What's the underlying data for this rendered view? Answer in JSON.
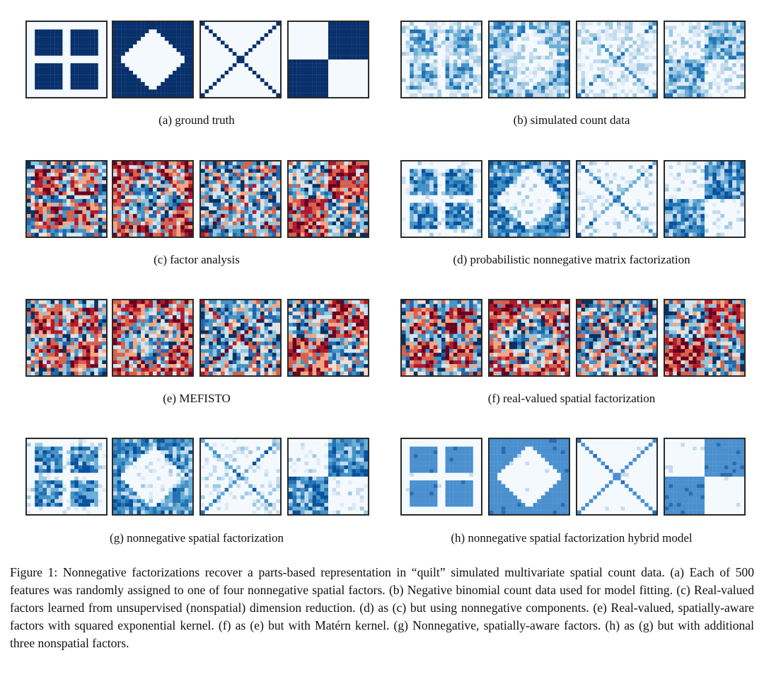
{
  "figure": {
    "groups": [
      {
        "id": "a",
        "caption": "(a) ground truth",
        "style": "truth"
      },
      {
        "id": "b",
        "caption": "(b) simulated count data",
        "style": "sim"
      },
      {
        "id": "c",
        "caption": "(c) factor analysis",
        "style": "diverging"
      },
      {
        "id": "d",
        "caption": "(d) probabilistic nonnegative matrix factorization",
        "style": "pnmf"
      },
      {
        "id": "e",
        "caption": "(e) MEFISTO",
        "style": "diverging"
      },
      {
        "id": "f",
        "caption": "(f) real-valued spatial factorization",
        "style": "diverging"
      },
      {
        "id": "g",
        "caption": "(g) nonnegative spatial factorization",
        "style": "nsf"
      },
      {
        "id": "h",
        "caption": "(h) nonnegative spatial factorization hybrid model",
        "style": "clean"
      }
    ],
    "patterns": [
      "quilt-squares",
      "diamond",
      "x-cross",
      "checkerboard"
    ],
    "caption_text": "Figure 1: Nonnegative factorizations recover a parts-based representation in “quilt” simulated multivariate spatial count data. (a) Each of 500 features was randomly assigned to one of four nonnegative spatial factors. (b) Negative binomial count data used for model fitting. (c) Real-valued factors learned from unsupervised (nonspatial) dimension reduction. (d) as (c) but using nonnegative components. (e) Real-valued, spatially-aware factors with squared exponential kernel. (f) as (e) but with Matérn kernel. (g) Nonnegative, spatially-aware factors. (h) as (g) but with additional three nonspatial factors.",
    "colors": {
      "dark_blue": "#08306b",
      "mid_blue": "#3a7fc1",
      "light_bg": "#f4f9fe",
      "red": "#b2182b",
      "pale_red": "#f4a582"
    }
  }
}
